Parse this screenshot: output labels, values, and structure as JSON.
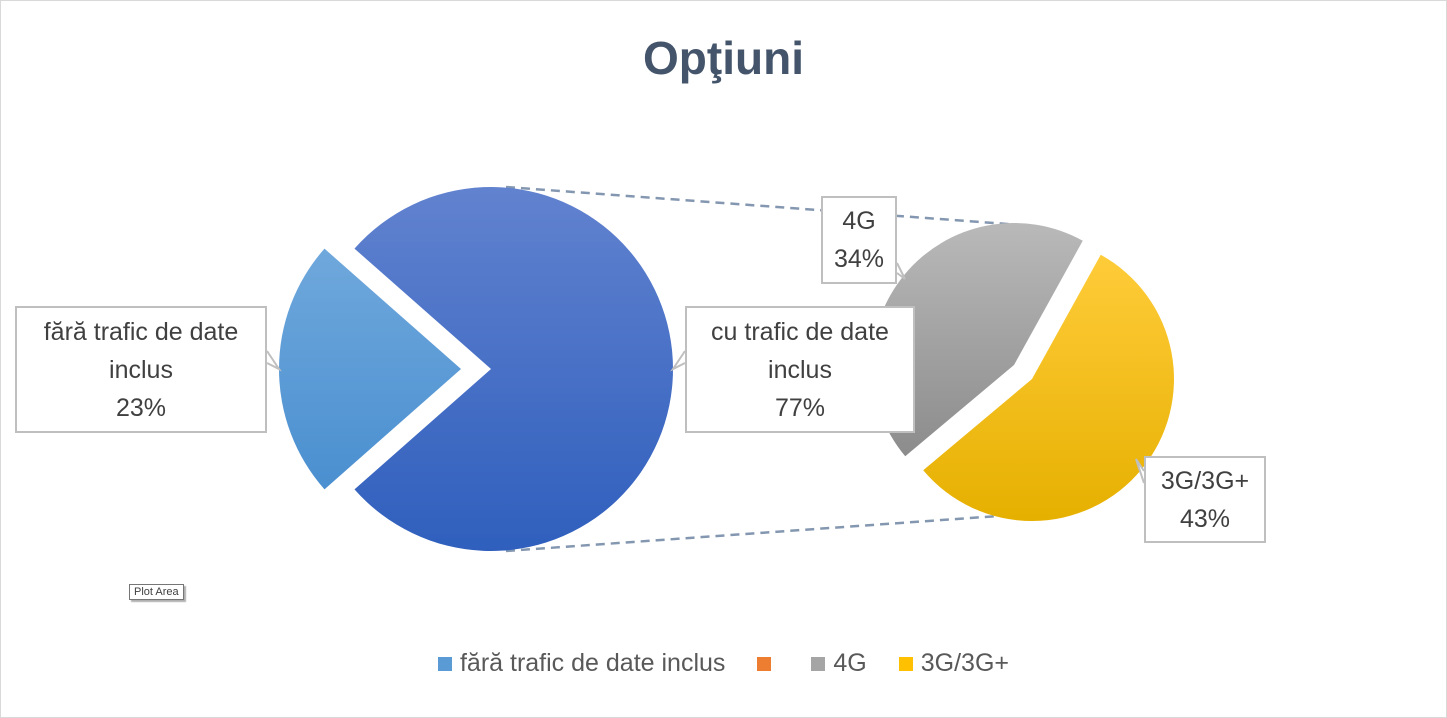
{
  "chart_data": {
    "type": "pie",
    "subtype": "pie-of-pie",
    "title": "Opţiuni",
    "main_pie": {
      "slices": [
        {
          "label": "fără trafic de date inclus",
          "value": 23,
          "value_label": "23%",
          "color": "#5b9bd5"
        },
        {
          "label": "cu trafic de date inclus",
          "value": 77,
          "value_label": "77%",
          "color": "#4472c4"
        }
      ]
    },
    "secondary_pie": {
      "slices": [
        {
          "label": "4G",
          "value": 34,
          "value_label": "34%",
          "color": "#a5a5a5"
        },
        {
          "label": "3G/3G+",
          "value": 43,
          "value_label": "43%",
          "color": "#ffc000"
        }
      ]
    },
    "legend": {
      "position": "bottom",
      "items": [
        {
          "label": "fără trafic de date inclus",
          "color": "#5b9bd5"
        },
        {
          "label": "",
          "color": "#ed7d31"
        },
        {
          "label": "4G",
          "color": "#a5a5a5"
        },
        {
          "label": "3G/3G+",
          "color": "#ffc000"
        }
      ]
    }
  },
  "tooltip": {
    "text": "Plot Area"
  }
}
